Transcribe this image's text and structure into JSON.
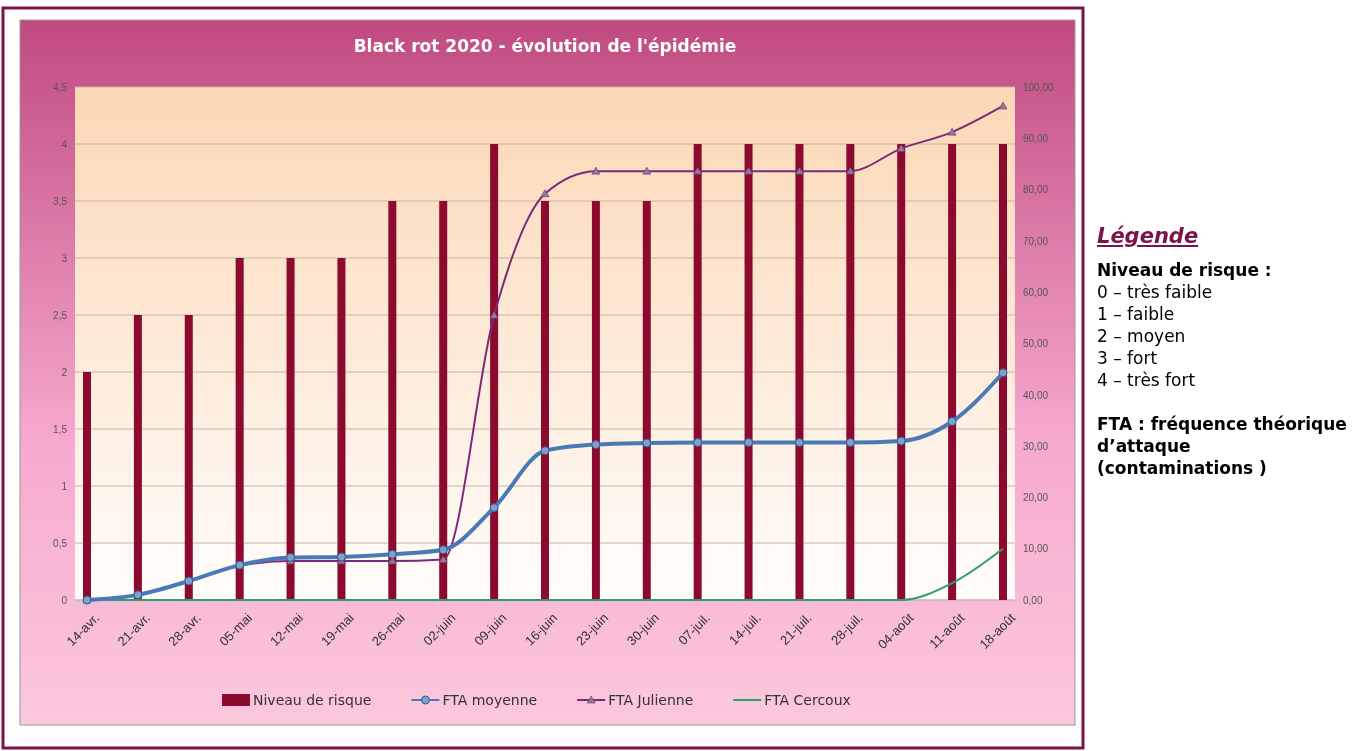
{
  "chart_data": {
    "type": "bar",
    "title": "Black rot 2020 - évolution de l'épidémie",
    "categories": [
      "14-avr.",
      "21-avr.",
      "28-avr.",
      "05-mai",
      "12-mai",
      "19-mai",
      "26-mai",
      "02-juin",
      "09-juin",
      "16-juin",
      "23-juin",
      "30-juin",
      "07-juil.",
      "14-juil.",
      "21-juil.",
      "28-juil.",
      "04-août",
      "11-août",
      "18-août"
    ],
    "series": [
      {
        "name": "Niveau de risque",
        "color": "#8b0a2e",
        "values": [
          2,
          2.5,
          2.5,
          3,
          3,
          3,
          3.5,
          3.5,
          4,
          3.5,
          3.5,
          3.5,
          4,
          4,
          4,
          4,
          4,
          4,
          4
        ]
      },
      {
        "name": "FTA moyenne",
        "type": "line",
        "axis": "y2",
        "color": "#4a7ab5",
        "marker": "circle",
        "values": [
          0,
          1,
          3.7,
          6.8,
          8.3,
          8.4,
          8.9,
          9.8,
          18,
          29.1,
          30.3,
          30.6,
          30.7,
          30.7,
          30.7,
          30.7,
          31,
          34.8,
          44.3
        ]
      },
      {
        "name": "FTA Julienne",
        "type": "line",
        "axis": "y2",
        "color": "#7a2a7a",
        "marker": "triangle",
        "values": [
          0,
          1,
          3.7,
          6.7,
          7.6,
          7.6,
          7.6,
          7.9,
          55.5,
          79.2,
          83.6,
          83.6,
          83.6,
          83.6,
          83.6,
          83.6,
          88,
          91.2,
          96.3
        ]
      },
      {
        "name": "FTA Cercoux",
        "type": "line",
        "axis": "y2",
        "color": "#2e9e6a",
        "marker": "none",
        "values": [
          0,
          0,
          0,
          0,
          0,
          0,
          0,
          0,
          0,
          0,
          0,
          0,
          0,
          0,
          0,
          0,
          0,
          3.3,
          10
        ]
      }
    ],
    "ylim": [
      0,
      4.5
    ],
    "yticks": [
      0,
      {
        "value": 0.5,
        "label": "0,5"
      },
      1,
      {
        "value": 1.5,
        "label": "1,5"
      },
      2,
      {
        "value": 2.5,
        "label": "2,5"
      },
      3,
      {
        "value": 3.5,
        "label": "3,5"
      },
      4,
      {
        "value": 4.5,
        "label": "4,5"
      }
    ],
    "y2lim": [
      0,
      100
    ],
    "y2ticks": [
      {
        "value": 0,
        "label": "0,00"
      },
      {
        "value": 10,
        "label": "10,00"
      },
      {
        "value": 20,
        "label": "20,00"
      },
      {
        "value": 30,
        "label": "30,00"
      },
      {
        "value": 40,
        "label": "40,00"
      },
      {
        "value": 50,
        "label": "50,00"
      },
      {
        "value": 60,
        "label": "60,00"
      },
      {
        "value": 70,
        "label": "70,00"
      },
      {
        "value": 80,
        "label": "80,00"
      },
      {
        "value": 90,
        "label": "90,00"
      },
      {
        "value": 100,
        "label": "100,00"
      }
    ],
    "grid": "y",
    "legend": "bottom",
    "annotations": [
      "Légende",
      "Niveau de risque :",
      "0 – très faible",
      "1 – faible",
      "2 – moyen",
      "3 – fort",
      "4 – très fort",
      "FTA : fréquence théorique d’attaque (contaminations )"
    ]
  }
}
